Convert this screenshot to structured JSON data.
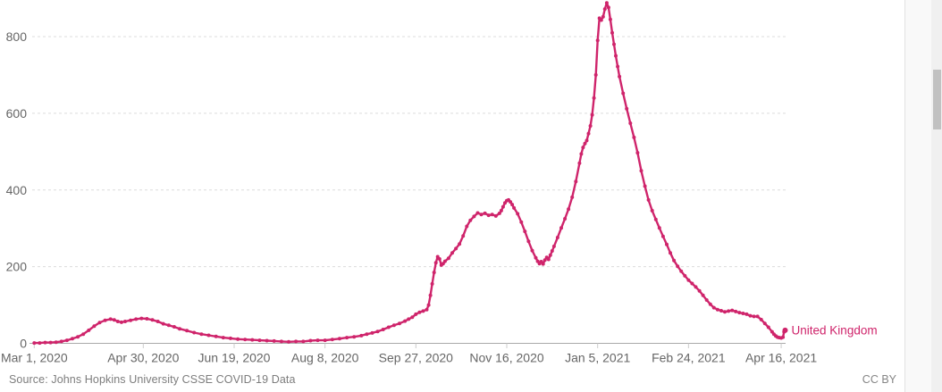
{
  "footer": {
    "source": "Source: Johns Hopkins University CSSE COVID-19 Data",
    "license": "CC BY"
  },
  "chart_data": {
    "type": "line",
    "title": "",
    "xlabel": "",
    "ylabel": "",
    "grid": "dashed horizontal",
    "legend_position": "end-of-line label",
    "y_ticks": [
      0,
      200,
      400,
      600,
      800
    ],
    "ylim": [
      0,
      895
    ],
    "x_ticks": [
      {
        "day": 0,
        "label": "Mar 1, 2020"
      },
      {
        "day": 60,
        "label": "Apr 30, 2020"
      },
      {
        "day": 110,
        "label": "Jun 19, 2020"
      },
      {
        "day": 160,
        "label": "Aug 8, 2020"
      },
      {
        "day": 210,
        "label": "Sep 27, 2020"
      },
      {
        "day": 260,
        "label": "Nov 16, 2020"
      },
      {
        "day": 310,
        "label": "Jan 5, 2021"
      },
      {
        "day": 360,
        "label": "Feb 24, 2021"
      },
      {
        "day": 411,
        "label": "Apr 16, 2021"
      }
    ],
    "x_range_days": [
      0,
      413.2
    ],
    "series": [
      {
        "name": "United Kingdom",
        "color": "#cf246b",
        "points": [
          [
            0,
            1
          ],
          [
            3,
            1
          ],
          [
            6,
            2
          ],
          [
            9,
            2
          ],
          [
            12,
            3
          ],
          [
            15,
            5
          ],
          [
            18,
            8
          ],
          [
            21,
            12
          ],
          [
            24,
            17
          ],
          [
            27,
            24
          ],
          [
            30,
            34
          ],
          [
            33,
            45
          ],
          [
            36,
            54
          ],
          [
            39,
            60
          ],
          [
            42,
            63
          ],
          [
            44,
            61
          ],
          [
            46,
            57
          ],
          [
            48,
            55
          ],
          [
            50,
            57
          ],
          [
            53,
            60
          ],
          [
            56,
            63
          ],
          [
            59,
            65
          ],
          [
            62,
            64
          ],
          [
            65,
            61
          ],
          [
            68,
            57
          ],
          [
            71,
            51
          ],
          [
            74,
            47
          ],
          [
            77,
            43
          ],
          [
            80,
            38
          ],
          [
            84,
            33
          ],
          [
            88,
            28
          ],
          [
            92,
            24
          ],
          [
            96,
            21
          ],
          [
            100,
            18
          ],
          [
            104,
            15
          ],
          [
            108,
            13
          ],
          [
            112,
            11
          ],
          [
            116,
            10
          ],
          [
            120,
            9
          ],
          [
            124,
            8
          ],
          [
            128,
            7
          ],
          [
            132,
            6
          ],
          [
            136,
            5
          ],
          [
            140,
            4
          ],
          [
            144,
            5
          ],
          [
            148,
            5
          ],
          [
            152,
            7
          ],
          [
            156,
            8
          ],
          [
            160,
            8
          ],
          [
            164,
            10
          ],
          [
            168,
            12
          ],
          [
            172,
            15
          ],
          [
            176,
            17
          ],
          [
            180,
            20
          ],
          [
            183,
            24
          ],
          [
            186,
            27
          ],
          [
            189,
            31
          ],
          [
            192,
            36
          ],
          [
            195,
            42
          ],
          [
            198,
            47
          ],
          [
            201,
            52
          ],
          [
            204,
            58
          ],
          [
            206,
            63
          ],
          [
            208,
            68
          ],
          [
            210,
            76
          ],
          [
            212,
            81
          ],
          [
            214,
            84
          ],
          [
            216,
            88
          ],
          [
            217,
            100
          ],
          [
            218,
            125
          ],
          [
            219,
            155
          ],
          [
            220,
            185
          ],
          [
            221,
            210
          ],
          [
            222,
            226
          ],
          [
            223,
            220
          ],
          [
            224,
            204
          ],
          [
            225,
            208
          ],
          [
            226,
            214
          ],
          [
            228,
            222
          ],
          [
            230,
            236
          ],
          [
            232,
            247
          ],
          [
            234,
            259
          ],
          [
            236,
            280
          ],
          [
            238,
            305
          ],
          [
            240,
            321
          ],
          [
            242,
            331
          ],
          [
            244,
            340
          ],
          [
            246,
            336
          ],
          [
            248,
            339
          ],
          [
            250,
            334
          ],
          [
            252,
            336
          ],
          [
            254,
            332
          ],
          [
            256,
            339
          ],
          [
            257,
            346
          ],
          [
            258,
            356
          ],
          [
            259,
            366
          ],
          [
            260,
            372
          ],
          [
            261,
            374
          ],
          [
            262,
            369
          ],
          [
            263,
            362
          ],
          [
            264,
            353
          ],
          [
            266,
            338
          ],
          [
            268,
            316
          ],
          [
            270,
            292
          ],
          [
            272,
            266
          ],
          [
            274,
            242
          ],
          [
            276,
            223
          ],
          [
            277,
            214
          ],
          [
            278,
            208
          ],
          [
            279,
            213
          ],
          [
            280,
            207
          ],
          [
            281,
            217
          ],
          [
            282,
            224
          ],
          [
            283,
            219
          ],
          [
            284,
            230
          ],
          [
            285,
            241
          ],
          [
            286,
            253
          ],
          [
            288,
            276
          ],
          [
            290,
            301
          ],
          [
            292,
            325
          ],
          [
            294,
            350
          ],
          [
            296,
            381
          ],
          [
            298,
            422
          ],
          [
            300,
            470
          ],
          [
            301,
            494
          ],
          [
            302,
            511
          ],
          [
            303,
            521
          ],
          [
            304,
            529
          ],
          [
            305,
            547
          ],
          [
            306,
            567
          ],
          [
            307,
            596
          ],
          [
            308,
            640
          ],
          [
            309,
            700
          ],
          [
            310,
            790
          ],
          [
            311,
            848
          ],
          [
            312,
            843
          ],
          [
            313,
            852
          ],
          [
            314,
            872
          ],
          [
            315,
            888
          ],
          [
            316,
            876
          ],
          [
            317,
            845
          ],
          [
            318,
            810
          ],
          [
            319,
            780
          ],
          [
            320,
            750
          ],
          [
            321,
            722
          ],
          [
            322,
            696
          ],
          [
            324,
            652
          ],
          [
            326,
            612
          ],
          [
            328,
            574
          ],
          [
            330,
            537
          ],
          [
            332,
            497
          ],
          [
            334,
            450
          ],
          [
            336,
            410
          ],
          [
            338,
            374
          ],
          [
            340,
            346
          ],
          [
            342,
            323
          ],
          [
            344,
            301
          ],
          [
            346,
            279
          ],
          [
            348,
            258
          ],
          [
            350,
            236
          ],
          [
            352,
            216
          ],
          [
            354,
            201
          ],
          [
            356,
            188
          ],
          [
            358,
            176
          ],
          [
            360,
            165
          ],
          [
            362,
            156
          ],
          [
            364,
            147
          ],
          [
            366,
            137
          ],
          [
            368,
            125
          ],
          [
            370,
            113
          ],
          [
            372,
            102
          ],
          [
            374,
            93
          ],
          [
            376,
            88
          ],
          [
            378,
            85
          ],
          [
            380,
            82
          ],
          [
            382,
            84
          ],
          [
            384,
            86
          ],
          [
            386,
            83
          ],
          [
            388,
            80
          ],
          [
            390,
            78
          ],
          [
            392,
            76
          ],
          [
            394,
            72
          ],
          [
            396,
            70
          ],
          [
            398,
            70
          ],
          [
            400,
            62
          ],
          [
            402,
            52
          ],
          [
            404,
            42
          ],
          [
            406,
            30
          ],
          [
            407,
            24
          ],
          [
            408,
            19
          ],
          [
            409,
            16
          ],
          [
            410,
            15
          ],
          [
            411,
            14
          ],
          [
            412,
            16
          ],
          [
            412.6,
            30
          ],
          [
            413.2,
            34
          ]
        ],
        "end_label": "United Kingdom"
      }
    ],
    "colors": {
      "series": "#cf246b",
      "tick_label": "#666666",
      "gridline": "#dcdcdc",
      "axis_line": "#a9a9a9"
    }
  }
}
